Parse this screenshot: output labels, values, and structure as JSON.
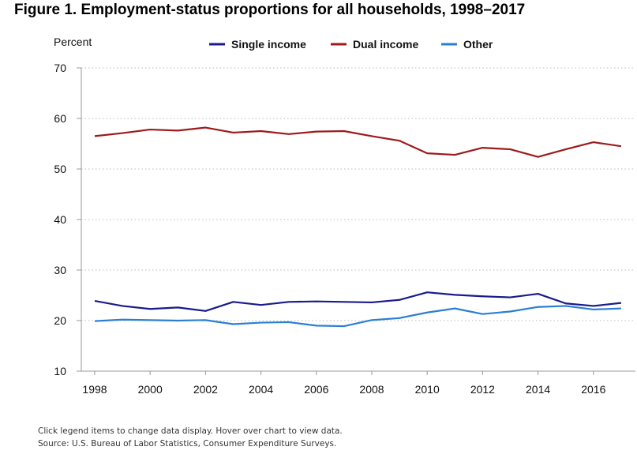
{
  "title": "Figure 1. Employment-status proportions for all households, 1998–2017",
  "notes": [
    "Click legend items to change data display. Hover over chart to view data.",
    "Source: U.S. Bureau of Labor Statistics, Consumer Expenditure Surveys."
  ],
  "chart_data": {
    "type": "line",
    "title": "Figure 1. Employment-status proportions for all households, 1998–2017",
    "ylabel": "Percent",
    "xlabel": "",
    "ylim": [
      10,
      70
    ],
    "yticks": [
      10,
      20,
      30,
      40,
      50,
      60,
      70
    ],
    "xticks": [
      1998,
      2000,
      2002,
      2004,
      2006,
      2008,
      2010,
      2012,
      2014,
      2016
    ],
    "legend_position": "top",
    "x": [
      1998,
      1999,
      2000,
      2001,
      2002,
      2003,
      2004,
      2005,
      2006,
      2007,
      2008,
      2009,
      2010,
      2011,
      2012,
      2013,
      2014,
      2015,
      2016,
      2017
    ],
    "series": [
      {
        "name": "Single income",
        "color": "#1a1a8c",
        "values": [
          23.9,
          22.9,
          22.3,
          22.6,
          21.9,
          23.7,
          23.1,
          23.7,
          23.8,
          23.7,
          23.6,
          24.1,
          25.6,
          25.1,
          24.8,
          24.6,
          25.3,
          23.4,
          22.9,
          23.5
        ]
      },
      {
        "name": "Dual income",
        "color": "#9c1a1c",
        "values": [
          56.5,
          57.1,
          57.8,
          57.6,
          58.2,
          57.2,
          57.5,
          56.9,
          57.4,
          57.5,
          56.5,
          55.6,
          53.1,
          52.8,
          54.2,
          53.9,
          52.4,
          53.9,
          55.3,
          54.5
        ]
      },
      {
        "name": "Other",
        "color": "#2a7fd4",
        "values": [
          19.9,
          20.2,
          20.1,
          20.0,
          20.1,
          19.3,
          19.6,
          19.7,
          19.0,
          18.9,
          20.1,
          20.5,
          21.6,
          22.4,
          21.3,
          21.8,
          22.7,
          22.9,
          22.2,
          22.4
        ]
      }
    ]
  }
}
